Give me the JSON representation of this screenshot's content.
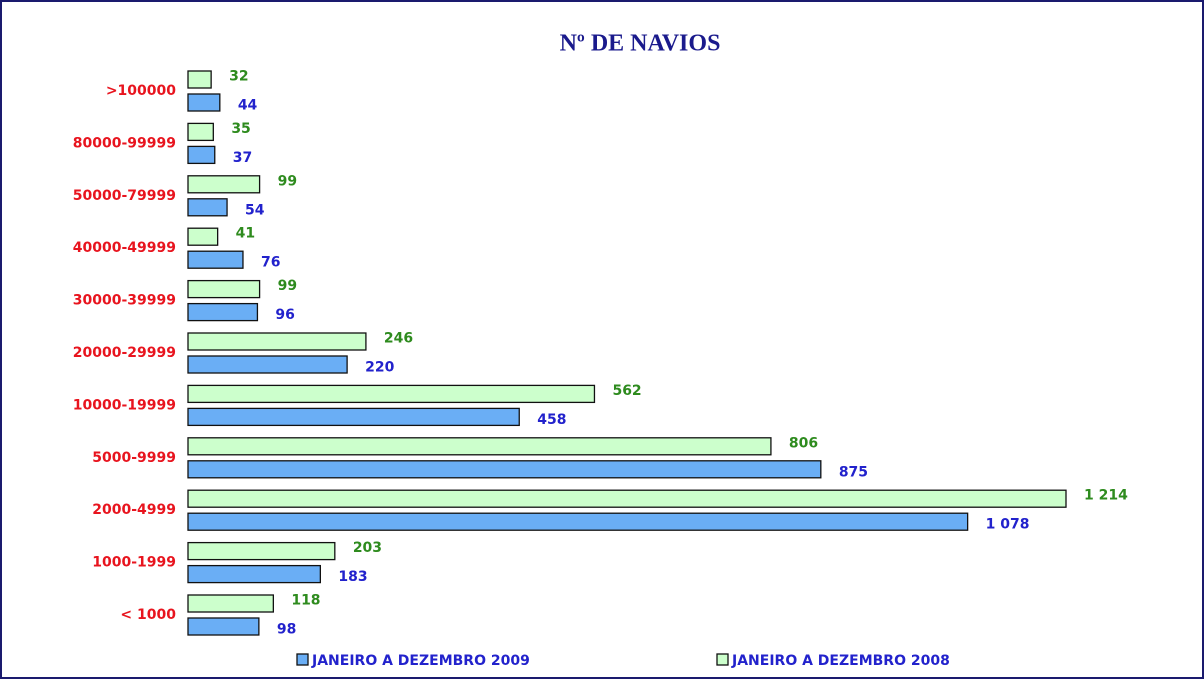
{
  "chart_data": {
    "type": "bar",
    "orientation": "horizontal",
    "title": "Nº DE NAVIOS",
    "categories": [
      ">100000",
      "80000-99999",
      "50000-79999",
      "40000-49999",
      "30000-39999",
      "20000-29999",
      "10000-19999",
      "5000-9999",
      "2000-4999",
      "1000-1999",
      "< 1000"
    ],
    "series": [
      {
        "name": "JANEIRO A DEZEMBRO 2009",
        "color": "#6aaef5",
        "values": [
          44,
          37,
          54,
          76,
          96,
          220,
          458,
          875,
          1078,
          183,
          98
        ],
        "value_labels": [
          "44",
          "37",
          "54",
          "76",
          "96",
          "220",
          "458",
          "875",
          "1 078",
          "183",
          "98"
        ]
      },
      {
        "name": "JANEIRO A DEZEMBRO 2008",
        "color": "#ccffcc",
        "values": [
          32,
          35,
          99,
          41,
          99,
          246,
          562,
          806,
          1214,
          203,
          118
        ],
        "value_labels": [
          "32",
          "35",
          "99",
          "41",
          "99",
          "246",
          "562",
          "806",
          "1 214",
          "203",
          "118"
        ]
      }
    ],
    "legend": "bottom"
  }
}
